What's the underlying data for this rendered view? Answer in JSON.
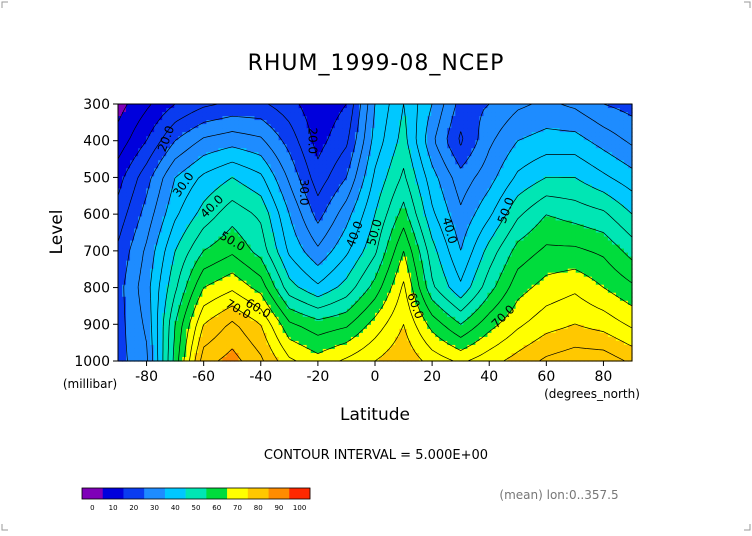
{
  "chart_data": {
    "type": "heatmap",
    "title": "RHUM_1999-08_NCEP",
    "xlabel": "Latitude",
    "ylabel": "Level",
    "x_unit": "(degrees_north)",
    "y_unit": "(millibar)",
    "xlim": [
      -90,
      90
    ],
    "ylim": [
      1000,
      300
    ],
    "x_ticks": [
      -80,
      -60,
      -40,
      -20,
      0,
      20,
      40,
      60,
      80
    ],
    "y_ticks": [
      300,
      400,
      500,
      600,
      700,
      800,
      900,
      1000
    ],
    "contour_interval_text": "CONTOUR INTERVAL = 5.000E+00",
    "subtitle": "(mean) lon:0..357.5",
    "colorbar": {
      "levels": [
        0,
        10,
        20,
        30,
        40,
        50,
        60,
        70,
        80,
        90,
        100
      ],
      "colors": [
        "#7f00b8",
        "#0000dc",
        "#0a3cf0",
        "#1e8cff",
        "#00c8ff",
        "#00e6b4",
        "#00dc3c",
        "#ffff00",
        "#ffc800",
        "#ff8c00",
        "#ff2800"
      ]
    },
    "contour_labels": [
      "20.0",
      "30.0",
      "40.0",
      "50.0",
      "60.0",
      "70.0",
      "20.0",
      "30.0",
      "40.0",
      "50.0",
      "60.0",
      "40.0",
      "50.0",
      "70.0"
    ],
    "columns": [
      {
        "lat": -90,
        "rh": [
          8,
          12,
          18,
          22,
          26,
          28,
          28,
          28
        ]
      },
      {
        "lat": -80,
        "rh": [
          14,
          20,
          28,
          32,
          36,
          38,
          36,
          34
        ]
      },
      {
        "lat": -70,
        "rh": [
          20,
          30,
          40,
          44,
          50,
          54,
          60,
          62
        ]
      },
      {
        "lat": -60,
        "rh": [
          24,
          36,
          46,
          52,
          60,
          70,
          80,
          88
        ]
      },
      {
        "lat": -50,
        "rh": [
          26,
          38,
          50,
          58,
          64,
          74,
          86,
          92
        ]
      },
      {
        "lat": -40,
        "rh": [
          26,
          36,
          46,
          54,
          58,
          68,
          80,
          86
        ]
      },
      {
        "lat": -30,
        "rh": [
          22,
          28,
          34,
          40,
          44,
          52,
          66,
          76
        ]
      },
      {
        "lat": -20,
        "rh": [
          16,
          18,
          22,
          28,
          36,
          46,
          62,
          72
        ]
      },
      {
        "lat": -10,
        "rh": [
          20,
          24,
          30,
          38,
          44,
          52,
          64,
          76
        ]
      },
      {
        "lat": 0,
        "rh": [
          40,
          42,
          46,
          50,
          54,
          62,
          72,
          80
        ]
      },
      {
        "lat": 10,
        "rh": [
          50,
          52,
          56,
          62,
          70,
          76,
          80,
          84
        ]
      },
      {
        "lat": 20,
        "rh": [
          40,
          36,
          42,
          46,
          52,
          56,
          68,
          78
        ]
      },
      {
        "lat": 30,
        "rh": [
          28,
          24,
          32,
          36,
          40,
          46,
          60,
          74
        ]
      },
      {
        "lat": 40,
        "rh": [
          30,
          34,
          38,
          44,
          52,
          58,
          68,
          78
        ]
      },
      {
        "lat": 50,
        "rh": [
          34,
          40,
          46,
          54,
          62,
          68,
          74,
          82
        ]
      },
      {
        "lat": 60,
        "rh": [
          36,
          42,
          50,
          60,
          66,
          72,
          78,
          86
        ]
      },
      {
        "lat": 70,
        "rh": [
          34,
          42,
          50,
          58,
          66,
          74,
          80,
          88
        ]
      },
      {
        "lat": 80,
        "rh": [
          30,
          38,
          46,
          56,
          64,
          70,
          78,
          88
        ]
      },
      {
        "lat": 90,
        "rh": [
          28,
          34,
          42,
          50,
          58,
          66,
          74,
          84
        ]
      }
    ]
  }
}
